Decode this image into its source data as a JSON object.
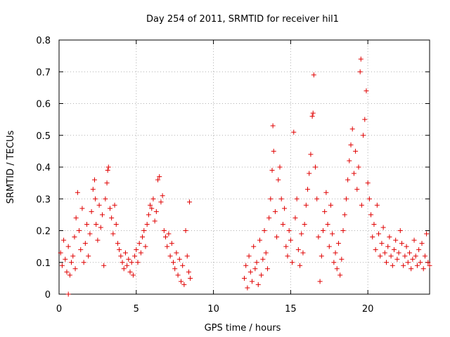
{
  "chart_data": {
    "type": "scatter",
    "title": "Day 254 of 2011, SRMTID for receiver hil1",
    "xlabel": "GPS time / hours",
    "ylabel": "SRMTID / TECUs",
    "xlim": [
      0,
      24
    ],
    "ylim": [
      0,
      0.8
    ],
    "x_ticks": [
      0,
      5,
      10,
      15,
      20
    ],
    "y_ticks": [
      0,
      0.1,
      0.2,
      0.3,
      0.4,
      0.5,
      0.6,
      0.7,
      0.8
    ],
    "x_tick_labels": [
      "0",
      "5",
      "10",
      "15",
      "20"
    ],
    "y_tick_labels": [
      "0",
      "0.1",
      "0.2",
      "0.3",
      "0.4",
      "0.5",
      "0.6",
      "0.7",
      "0.8"
    ],
    "grid": true,
    "marker": "+",
    "marker_color": "#e00000",
    "series": [
      {
        "name": "SRMTID",
        "points": [
          [
            0.1,
            0.13
          ],
          [
            0.2,
            0.09
          ],
          [
            0.3,
            0.17
          ],
          [
            0.4,
            0.11
          ],
          [
            0.5,
            0.07
          ],
          [
            0.6,
            0.15
          ],
          [
            0.6,
            0.0
          ],
          [
            0.7,
            0.06
          ],
          [
            0.8,
            0.1
          ],
          [
            0.9,
            0.12
          ],
          [
            1.0,
            0.18
          ],
          [
            1.05,
            0.08
          ],
          [
            1.1,
            0.24
          ],
          [
            1.2,
            0.32
          ],
          [
            1.3,
            0.2
          ],
          [
            1.4,
            0.14
          ],
          [
            1.5,
            0.27
          ],
          [
            1.6,
            0.1
          ],
          [
            1.7,
            0.16
          ],
          [
            1.8,
            0.22
          ],
          [
            1.9,
            0.12
          ],
          [
            2.0,
            0.19
          ],
          [
            2.1,
            0.26
          ],
          [
            2.2,
            0.33
          ],
          [
            2.3,
            0.36
          ],
          [
            2.35,
            0.3
          ],
          [
            2.4,
            0.22
          ],
          [
            2.5,
            0.17
          ],
          [
            2.6,
            0.28
          ],
          [
            2.7,
            0.21
          ],
          [
            2.8,
            0.25
          ],
          [
            2.9,
            0.09
          ],
          [
            3.0,
            0.3
          ],
          [
            3.1,
            0.35
          ],
          [
            3.15,
            0.39
          ],
          [
            3.2,
            0.4
          ],
          [
            3.3,
            0.27
          ],
          [
            3.4,
            0.24
          ],
          [
            3.5,
            0.19
          ],
          [
            3.6,
            0.28
          ],
          [
            3.7,
            0.22
          ],
          [
            3.8,
            0.16
          ],
          [
            3.9,
            0.14
          ],
          [
            4.0,
            0.12
          ],
          [
            4.1,
            0.1
          ],
          [
            4.2,
            0.08
          ],
          [
            4.3,
            0.13
          ],
          [
            4.4,
            0.09
          ],
          [
            4.5,
            0.11
          ],
          [
            4.6,
            0.07
          ],
          [
            4.7,
            0.1
          ],
          [
            4.8,
            0.06
          ],
          [
            4.9,
            0.12
          ],
          [
            5.0,
            0.14
          ],
          [
            5.1,
            0.1
          ],
          [
            5.2,
            0.16
          ],
          [
            5.3,
            0.13
          ],
          [
            5.4,
            0.18
          ],
          [
            5.5,
            0.2
          ],
          [
            5.6,
            0.15
          ],
          [
            5.7,
            0.22
          ],
          [
            5.8,
            0.25
          ],
          [
            5.9,
            0.28
          ],
          [
            6.0,
            0.27
          ],
          [
            6.1,
            0.3
          ],
          [
            6.2,
            0.23
          ],
          [
            6.3,
            0.26
          ],
          [
            6.4,
            0.36
          ],
          [
            6.5,
            0.37
          ],
          [
            6.6,
            0.29
          ],
          [
            6.7,
            0.31
          ],
          [
            6.8,
            0.2
          ],
          [
            6.9,
            0.18
          ],
          [
            7.0,
            0.15
          ],
          [
            7.1,
            0.19
          ],
          [
            7.2,
            0.12
          ],
          [
            7.3,
            0.16
          ],
          [
            7.4,
            0.1
          ],
          [
            7.5,
            0.08
          ],
          [
            7.6,
            0.13
          ],
          [
            7.7,
            0.06
          ],
          [
            7.8,
            0.11
          ],
          [
            7.9,
            0.04
          ],
          [
            8.0,
            0.09
          ],
          [
            8.1,
            0.03
          ],
          [
            8.2,
            0.2
          ],
          [
            8.3,
            0.12
          ],
          [
            8.4,
            0.07
          ],
          [
            8.45,
            0.29
          ],
          [
            8.5,
            0.05
          ],
          [
            12.0,
            0.05
          ],
          [
            12.1,
            0.09
          ],
          [
            12.2,
            0.02
          ],
          [
            12.3,
            0.12
          ],
          [
            12.4,
            0.07
          ],
          [
            12.5,
            0.04
          ],
          [
            12.6,
            0.15
          ],
          [
            12.7,
            0.08
          ],
          [
            12.8,
            0.1
          ],
          [
            12.9,
            0.03
          ],
          [
            13.0,
            0.17
          ],
          [
            13.1,
            0.06
          ],
          [
            13.2,
            0.11
          ],
          [
            13.3,
            0.2
          ],
          [
            13.4,
            0.13
          ],
          [
            13.5,
            0.08
          ],
          [
            13.6,
            0.24
          ],
          [
            13.7,
            0.3
          ],
          [
            13.8,
            0.39
          ],
          [
            13.85,
            0.53
          ],
          [
            13.9,
            0.45
          ],
          [
            14.0,
            0.26
          ],
          [
            14.1,
            0.18
          ],
          [
            14.2,
            0.36
          ],
          [
            14.3,
            0.4
          ],
          [
            14.4,
            0.3
          ],
          [
            14.5,
            0.22
          ],
          [
            14.6,
            0.27
          ],
          [
            14.7,
            0.15
          ],
          [
            14.8,
            0.12
          ],
          [
            14.9,
            0.2
          ],
          [
            15.0,
            0.17
          ],
          [
            15.1,
            0.1
          ],
          [
            15.2,
            0.51
          ],
          [
            15.3,
            0.24
          ],
          [
            15.4,
            0.3
          ],
          [
            15.5,
            0.14
          ],
          [
            15.6,
            0.09
          ],
          [
            15.7,
            0.19
          ],
          [
            15.8,
            0.13
          ],
          [
            15.9,
            0.22
          ],
          [
            16.0,
            0.28
          ],
          [
            16.1,
            0.33
          ],
          [
            16.2,
            0.38
          ],
          [
            16.3,
            0.44
          ],
          [
            16.4,
            0.56
          ],
          [
            16.45,
            0.57
          ],
          [
            16.5,
            0.69
          ],
          [
            16.6,
            0.4
          ],
          [
            16.7,
            0.3
          ],
          [
            16.8,
            0.18
          ],
          [
            16.9,
            0.04
          ],
          [
            17.0,
            0.12
          ],
          [
            17.1,
            0.2
          ],
          [
            17.2,
            0.26
          ],
          [
            17.3,
            0.32
          ],
          [
            17.4,
            0.22
          ],
          [
            17.5,
            0.15
          ],
          [
            17.6,
            0.28
          ],
          [
            17.7,
            0.19
          ],
          [
            17.8,
            0.1
          ],
          [
            17.9,
            0.13
          ],
          [
            18.0,
            0.08
          ],
          [
            18.1,
            0.16
          ],
          [
            18.2,
            0.06
          ],
          [
            18.3,
            0.11
          ],
          [
            18.4,
            0.2
          ],
          [
            18.5,
            0.25
          ],
          [
            18.6,
            0.3
          ],
          [
            18.7,
            0.36
          ],
          [
            18.8,
            0.42
          ],
          [
            18.9,
            0.47
          ],
          [
            19.0,
            0.52
          ],
          [
            19.1,
            0.38
          ],
          [
            19.2,
            0.45
          ],
          [
            19.3,
            0.33
          ],
          [
            19.4,
            0.4
          ],
          [
            19.5,
            0.7
          ],
          [
            19.55,
            0.74
          ],
          [
            19.6,
            0.28
          ],
          [
            19.7,
            0.5
          ],
          [
            19.8,
            0.55
          ],
          [
            19.9,
            0.64
          ],
          [
            20.0,
            0.35
          ],
          [
            20.1,
            0.3
          ],
          [
            20.2,
            0.25
          ],
          [
            20.3,
            0.18
          ],
          [
            20.4,
            0.22
          ],
          [
            20.5,
            0.14
          ],
          [
            20.6,
            0.28
          ],
          [
            20.7,
            0.19
          ],
          [
            20.8,
            0.12
          ],
          [
            20.9,
            0.16
          ],
          [
            21.0,
            0.21
          ],
          [
            21.1,
            0.13
          ],
          [
            21.2,
            0.1
          ],
          [
            21.3,
            0.15
          ],
          [
            21.4,
            0.18
          ],
          [
            21.5,
            0.12
          ],
          [
            21.6,
            0.09
          ],
          [
            21.7,
            0.14
          ],
          [
            21.8,
            0.17
          ],
          [
            21.9,
            0.11
          ],
          [
            22.0,
            0.13
          ],
          [
            22.1,
            0.2
          ],
          [
            22.2,
            0.16
          ],
          [
            22.3,
            0.09
          ],
          [
            22.4,
            0.12
          ],
          [
            22.5,
            0.15
          ],
          [
            22.6,
            0.1
          ],
          [
            22.7,
            0.13
          ],
          [
            22.8,
            0.08
          ],
          [
            22.9,
            0.11
          ],
          [
            23.0,
            0.17
          ],
          [
            23.1,
            0.12
          ],
          [
            23.2,
            0.09
          ],
          [
            23.3,
            0.14
          ],
          [
            23.4,
            0.1
          ],
          [
            23.5,
            0.16
          ],
          [
            23.6,
            0.08
          ],
          [
            23.7,
            0.12
          ],
          [
            23.8,
            0.19
          ],
          [
            23.9,
            0.1
          ],
          [
            24.0,
            0.09
          ]
        ]
      }
    ]
  }
}
